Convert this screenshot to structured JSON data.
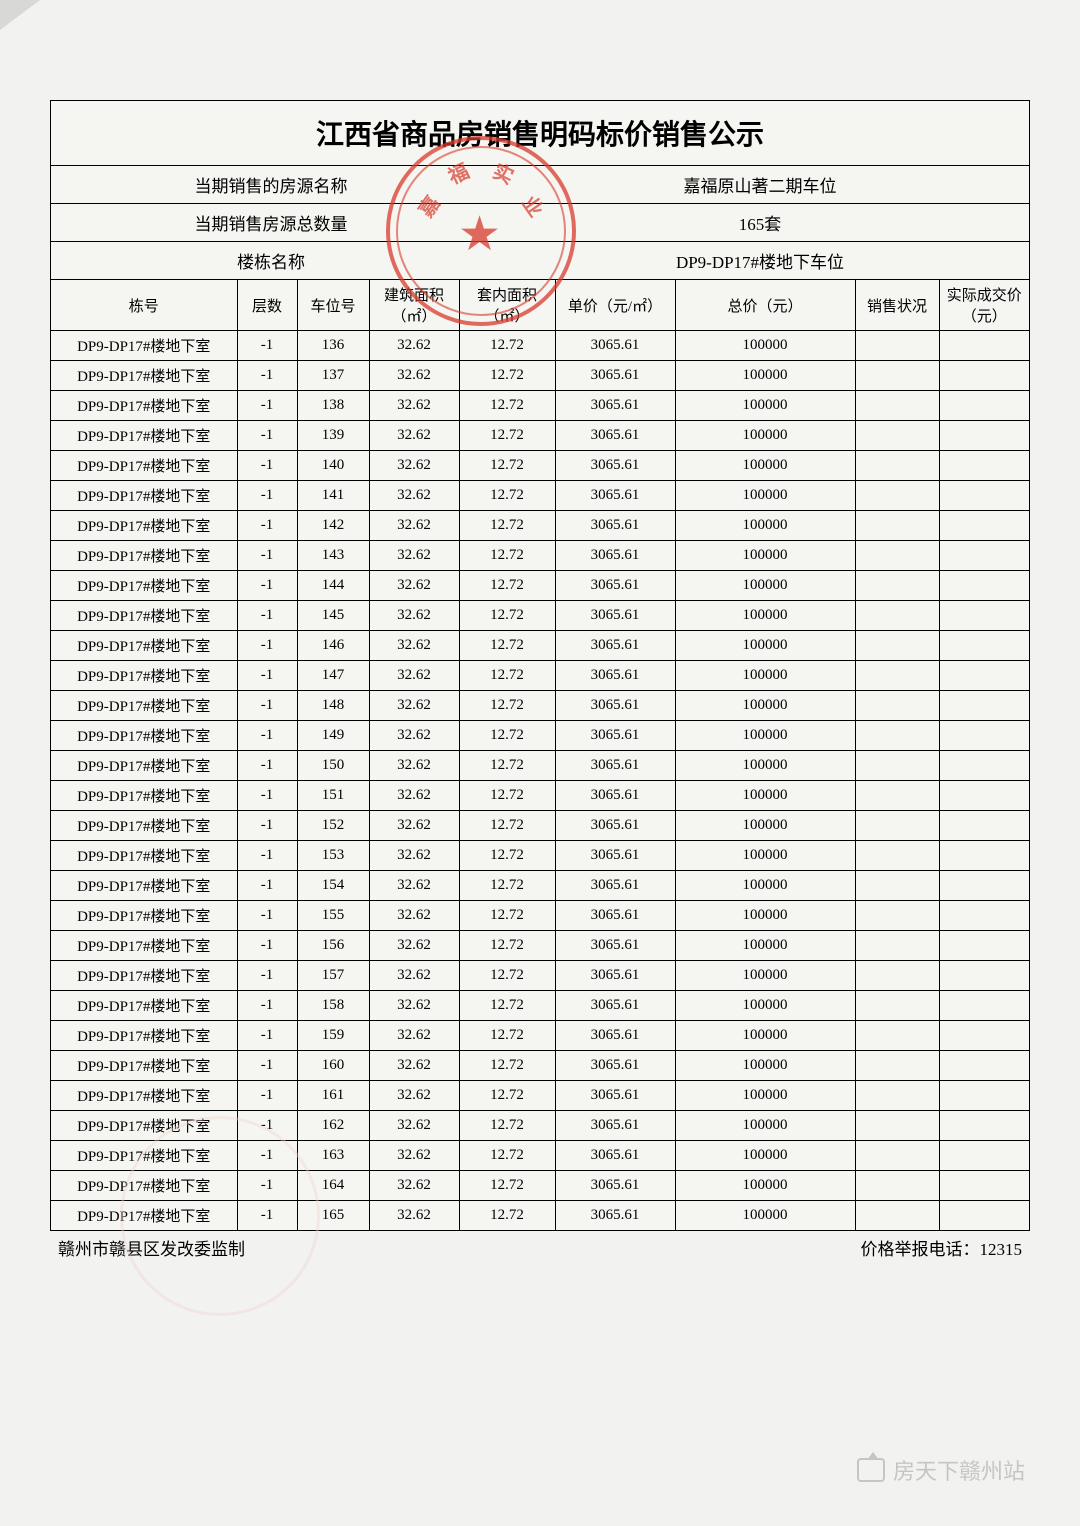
{
  "title": "江西省商品房销售明码标价销售公示",
  "headers": {
    "row1_label": "当期销售的房源名称",
    "row1_value": "嘉福原山著二期车位",
    "row2_label": "当期销售房源总数量",
    "row2_value": "165套",
    "row3_label": "楼栋名称",
    "row3_value": "DP9-DP17#楼地下车位"
  },
  "columns": {
    "building": "栋号",
    "floor": "层数",
    "parking_no": "车位号",
    "build_area": "建筑面积（㎡）",
    "inner_area": "套内面积（㎡）",
    "unit_price": "单价（元/㎡）",
    "total_price": "总价（元）",
    "status": "销售状况",
    "actual_price": "实际成交价（元）"
  },
  "rows": [
    {
      "building": "DP9-DP17#楼地下室",
      "floor": "-1",
      "no": "136",
      "ba": "32.62",
      "ia": "12.72",
      "up": "3065.61",
      "tp": "100000",
      "st": "",
      "ap": ""
    },
    {
      "building": "DP9-DP17#楼地下室",
      "floor": "-1",
      "no": "137",
      "ba": "32.62",
      "ia": "12.72",
      "up": "3065.61",
      "tp": "100000",
      "st": "",
      "ap": ""
    },
    {
      "building": "DP9-DP17#楼地下室",
      "floor": "-1",
      "no": "138",
      "ba": "32.62",
      "ia": "12.72",
      "up": "3065.61",
      "tp": "100000",
      "st": "",
      "ap": ""
    },
    {
      "building": "DP9-DP17#楼地下室",
      "floor": "-1",
      "no": "139",
      "ba": "32.62",
      "ia": "12.72",
      "up": "3065.61",
      "tp": "100000",
      "st": "",
      "ap": ""
    },
    {
      "building": "DP9-DP17#楼地下室",
      "floor": "-1",
      "no": "140",
      "ba": "32.62",
      "ia": "12.72",
      "up": "3065.61",
      "tp": "100000",
      "st": "",
      "ap": ""
    },
    {
      "building": "DP9-DP17#楼地下室",
      "floor": "-1",
      "no": "141",
      "ba": "32.62",
      "ia": "12.72",
      "up": "3065.61",
      "tp": "100000",
      "st": "",
      "ap": ""
    },
    {
      "building": "DP9-DP17#楼地下室",
      "floor": "-1",
      "no": "142",
      "ba": "32.62",
      "ia": "12.72",
      "up": "3065.61",
      "tp": "100000",
      "st": "",
      "ap": ""
    },
    {
      "building": "DP9-DP17#楼地下室",
      "floor": "-1",
      "no": "143",
      "ba": "32.62",
      "ia": "12.72",
      "up": "3065.61",
      "tp": "100000",
      "st": "",
      "ap": ""
    },
    {
      "building": "DP9-DP17#楼地下室",
      "floor": "-1",
      "no": "144",
      "ba": "32.62",
      "ia": "12.72",
      "up": "3065.61",
      "tp": "100000",
      "st": "",
      "ap": ""
    },
    {
      "building": "DP9-DP17#楼地下室",
      "floor": "-1",
      "no": "145",
      "ba": "32.62",
      "ia": "12.72",
      "up": "3065.61",
      "tp": "100000",
      "st": "",
      "ap": ""
    },
    {
      "building": "DP9-DP17#楼地下室",
      "floor": "-1",
      "no": "146",
      "ba": "32.62",
      "ia": "12.72",
      "up": "3065.61",
      "tp": "100000",
      "st": "",
      "ap": ""
    },
    {
      "building": "DP9-DP17#楼地下室",
      "floor": "-1",
      "no": "147",
      "ba": "32.62",
      "ia": "12.72",
      "up": "3065.61",
      "tp": "100000",
      "st": "",
      "ap": ""
    },
    {
      "building": "DP9-DP17#楼地下室",
      "floor": "-1",
      "no": "148",
      "ba": "32.62",
      "ia": "12.72",
      "up": "3065.61",
      "tp": "100000",
      "st": "",
      "ap": ""
    },
    {
      "building": "DP9-DP17#楼地下室",
      "floor": "-1",
      "no": "149",
      "ba": "32.62",
      "ia": "12.72",
      "up": "3065.61",
      "tp": "100000",
      "st": "",
      "ap": ""
    },
    {
      "building": "DP9-DP17#楼地下室",
      "floor": "-1",
      "no": "150",
      "ba": "32.62",
      "ia": "12.72",
      "up": "3065.61",
      "tp": "100000",
      "st": "",
      "ap": ""
    },
    {
      "building": "DP9-DP17#楼地下室",
      "floor": "-1",
      "no": "151",
      "ba": "32.62",
      "ia": "12.72",
      "up": "3065.61",
      "tp": "100000",
      "st": "",
      "ap": ""
    },
    {
      "building": "DP9-DP17#楼地下室",
      "floor": "-1",
      "no": "152",
      "ba": "32.62",
      "ia": "12.72",
      "up": "3065.61",
      "tp": "100000",
      "st": "",
      "ap": ""
    },
    {
      "building": "DP9-DP17#楼地下室",
      "floor": "-1",
      "no": "153",
      "ba": "32.62",
      "ia": "12.72",
      "up": "3065.61",
      "tp": "100000",
      "st": "",
      "ap": ""
    },
    {
      "building": "DP9-DP17#楼地下室",
      "floor": "-1",
      "no": "154",
      "ba": "32.62",
      "ia": "12.72",
      "up": "3065.61",
      "tp": "100000",
      "st": "",
      "ap": ""
    },
    {
      "building": "DP9-DP17#楼地下室",
      "floor": "-1",
      "no": "155",
      "ba": "32.62",
      "ia": "12.72",
      "up": "3065.61",
      "tp": "100000",
      "st": "",
      "ap": ""
    },
    {
      "building": "DP9-DP17#楼地下室",
      "floor": "-1",
      "no": "156",
      "ba": "32.62",
      "ia": "12.72",
      "up": "3065.61",
      "tp": "100000",
      "st": "",
      "ap": ""
    },
    {
      "building": "DP9-DP17#楼地下室",
      "floor": "-1",
      "no": "157",
      "ba": "32.62",
      "ia": "12.72",
      "up": "3065.61",
      "tp": "100000",
      "st": "",
      "ap": ""
    },
    {
      "building": "DP9-DP17#楼地下室",
      "floor": "-1",
      "no": "158",
      "ba": "32.62",
      "ia": "12.72",
      "up": "3065.61",
      "tp": "100000",
      "st": "",
      "ap": ""
    },
    {
      "building": "DP9-DP17#楼地下室",
      "floor": "-1",
      "no": "159",
      "ba": "32.62",
      "ia": "12.72",
      "up": "3065.61",
      "tp": "100000",
      "st": "",
      "ap": ""
    },
    {
      "building": "DP9-DP17#楼地下室",
      "floor": "-1",
      "no": "160",
      "ba": "32.62",
      "ia": "12.72",
      "up": "3065.61",
      "tp": "100000",
      "st": "",
      "ap": ""
    },
    {
      "building": "DP9-DP17#楼地下室",
      "floor": "-1",
      "no": "161",
      "ba": "32.62",
      "ia": "12.72",
      "up": "3065.61",
      "tp": "100000",
      "st": "",
      "ap": ""
    },
    {
      "building": "DP9-DP17#楼地下室",
      "floor": "-1",
      "no": "162",
      "ba": "32.62",
      "ia": "12.72",
      "up": "3065.61",
      "tp": "100000",
      "st": "",
      "ap": ""
    },
    {
      "building": "DP9-DP17#楼地下室",
      "floor": "-1",
      "no": "163",
      "ba": "32.62",
      "ia": "12.72",
      "up": "3065.61",
      "tp": "100000",
      "st": "",
      "ap": ""
    },
    {
      "building": "DP9-DP17#楼地下室",
      "floor": "-1",
      "no": "164",
      "ba": "32.62",
      "ia": "12.72",
      "up": "3065.61",
      "tp": "100000",
      "st": "",
      "ap": ""
    },
    {
      "building": "DP9-DP17#楼地下室",
      "floor": "-1",
      "no": "165",
      "ba": "32.62",
      "ia": "12.72",
      "up": "3065.61",
      "tp": "100000",
      "st": "",
      "ap": ""
    }
  ],
  "footer": {
    "left": "赣州市赣县区发改委监制",
    "right": "价格举报电话：12315"
  },
  "watermark": "房天下赣州站",
  "styling": {
    "page_background": "#f2f2f0",
    "border_color": "#000000",
    "seal_color": "#d83a2c",
    "text_color": "#000000",
    "watermark_color": "#c5c5c3",
    "title_fontsize": 28,
    "body_fontsize": 15,
    "header_fontsize": 17,
    "font_family": "SimSun"
  }
}
